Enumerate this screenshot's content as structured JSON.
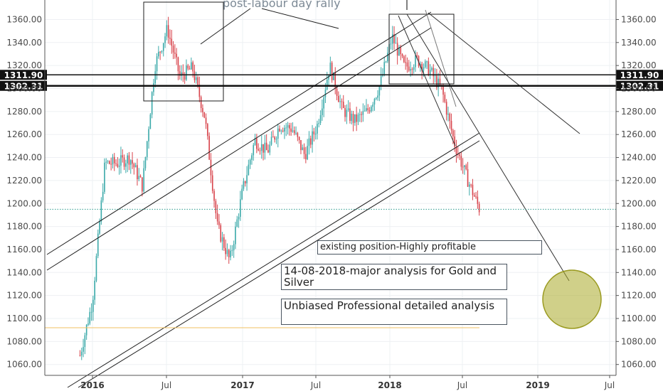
{
  "chart_data": {
    "type": "candlestick",
    "symbol": "Gold",
    "x_ticks": [
      "2016",
      "Jul",
      "2017",
      "Jul",
      "2018",
      "Jul",
      "2019",
      "Jul"
    ],
    "y_ticks": [
      "1060.00",
      "1080.00",
      "1100.00",
      "1120.00",
      "1140.00",
      "1160.00",
      "1180.00",
      "1200.00",
      "1220.00",
      "1240.00",
      "1260.00",
      "1280.00",
      "1300.00",
      "1320.00",
      "1340.00",
      "1360.00"
    ],
    "ylim": [
      1055,
      1375
    ],
    "levels": [
      {
        "label": "1311.90",
        "value": 1311.9
      },
      {
        "label": "1302.31",
        "value": 1302.31
      }
    ],
    "annotations": {
      "title_fragment": "post-labour day rally",
      "note1": "existing position-Highly profitable",
      "note2": "14-08-2018-major analysis for Gold and Silver",
      "note3": "Unbiased Professional detailed analysis"
    },
    "price_path": [
      {
        "date": "2015-12",
        "close": 1068
      },
      {
        "date": "2016-01",
        "close": 1115
      },
      {
        "date": "2016-02",
        "close": 1235
      },
      {
        "date": "2016-03",
        "close": 1235
      },
      {
        "date": "2016-04",
        "close": 1240
      },
      {
        "date": "2016-05",
        "close": 1215
      },
      {
        "date": "2016-06",
        "close": 1320
      },
      {
        "date": "2016-07",
        "close": 1352
      },
      {
        "date": "2016-08",
        "close": 1310
      },
      {
        "date": "2016-09",
        "close": 1318
      },
      {
        "date": "2016-10",
        "close": 1275
      },
      {
        "date": "2016-11",
        "close": 1180
      },
      {
        "date": "2016-12",
        "close": 1150
      },
      {
        "date": "2017-01",
        "close": 1210
      },
      {
        "date": "2017-02",
        "close": 1255
      },
      {
        "date": "2017-03",
        "close": 1245
      },
      {
        "date": "2017-04",
        "close": 1268
      },
      {
        "date": "2017-05",
        "close": 1265
      },
      {
        "date": "2017-06",
        "close": 1242
      },
      {
        "date": "2017-07",
        "close": 1268
      },
      {
        "date": "2017-08",
        "close": 1320
      },
      {
        "date": "2017-09",
        "close": 1282
      },
      {
        "date": "2017-10",
        "close": 1272
      },
      {
        "date": "2017-11",
        "close": 1280
      },
      {
        "date": "2017-12",
        "close": 1302
      },
      {
        "date": "2018-01",
        "close": 1345
      },
      {
        "date": "2018-02",
        "close": 1318
      },
      {
        "date": "2018-03",
        "close": 1325
      },
      {
        "date": "2018-04",
        "close": 1316
      },
      {
        "date": "2018-05",
        "close": 1298
      },
      {
        "date": "2018-06",
        "close": 1252
      },
      {
        "date": "2018-07",
        "close": 1222
      },
      {
        "date": "2018-08",
        "close": 1195
      }
    ],
    "last_close": 1195,
    "grid": true
  }
}
